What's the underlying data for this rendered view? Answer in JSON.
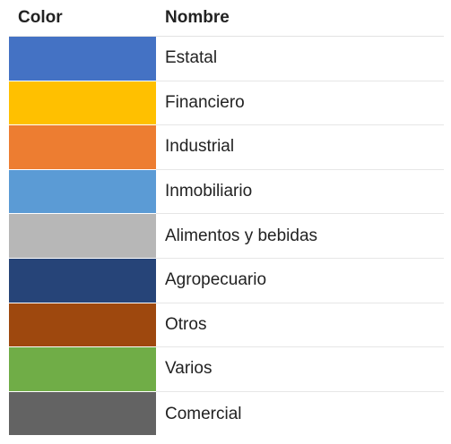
{
  "header": {
    "color_label": "Color",
    "name_label": "Nombre"
  },
  "rows": [
    {
      "name": "Estatal",
      "color": "#4472c4"
    },
    {
      "name": "Financiero",
      "color": "#ffc000"
    },
    {
      "name": "Industrial",
      "color": "#ed7d31"
    },
    {
      "name": "Inmobiliario",
      "color": "#5b9bd5"
    },
    {
      "name": "Alimentos y bebidas",
      "color": "#b7b7b7"
    },
    {
      "name": "Agropecuario",
      "color": "#264478"
    },
    {
      "name": "Otros",
      "color": "#9e480e"
    },
    {
      "name": "Varios",
      "color": "#70ad47"
    },
    {
      "name": "Comercial",
      "color": "#636363"
    }
  ]
}
